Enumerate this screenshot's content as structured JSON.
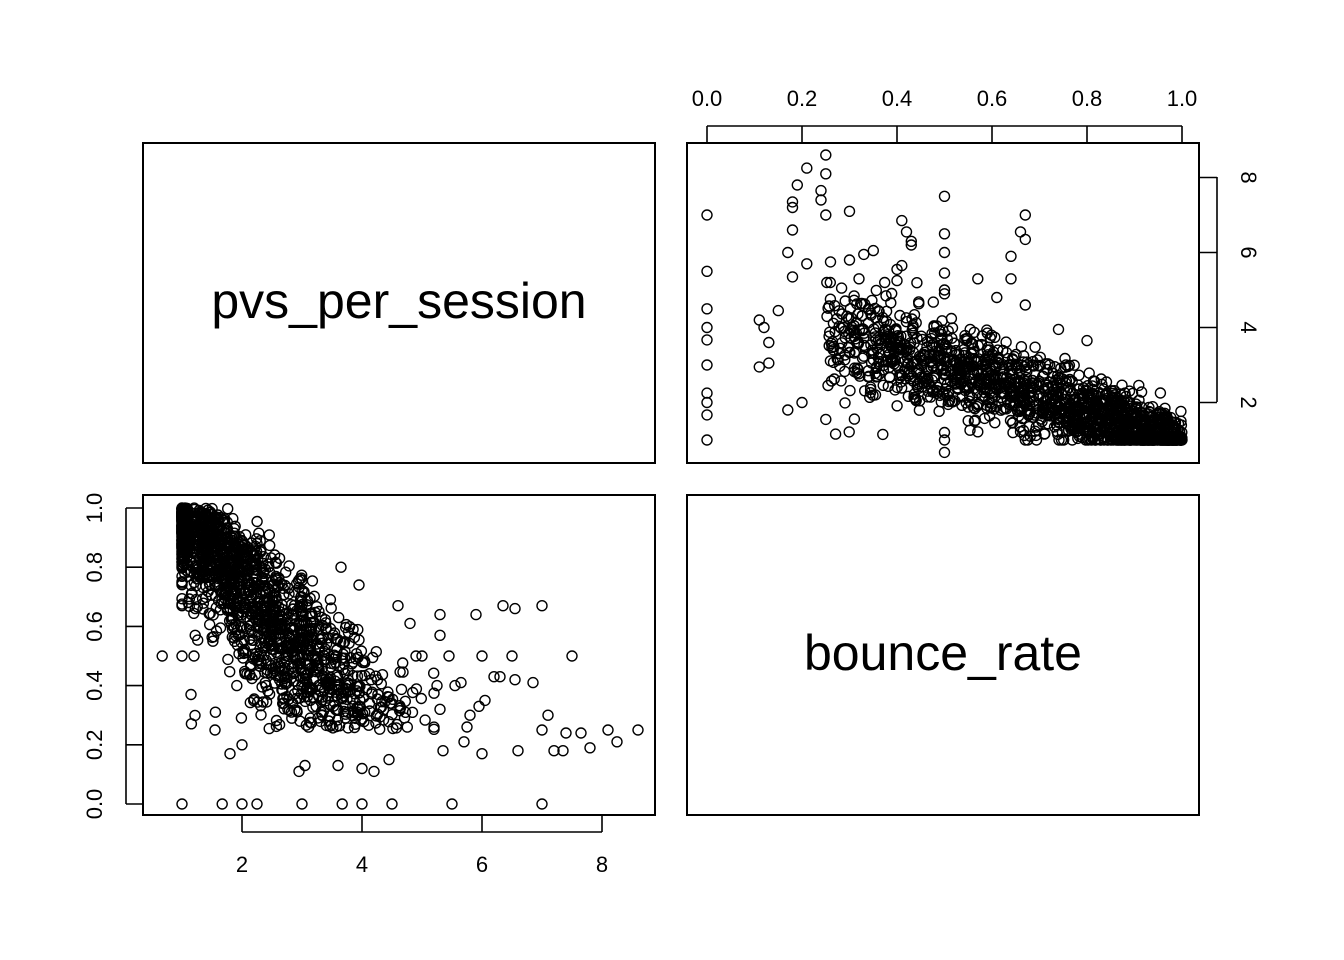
{
  "chart_data": {
    "type": "scatter",
    "variables": [
      "pvs_per_session",
      "bounce_rate"
    ],
    "x_ticks": {
      "bounce_rate": [
        "0.0",
        "0.2",
        "0.4",
        "0.6",
        "0.8",
        "1.0"
      ],
      "pvs_per_session": [
        "2",
        "4",
        "6",
        "8"
      ]
    },
    "y_ticks": {
      "pvs_per_session": [
        "2",
        "4",
        "6",
        "8"
      ],
      "bounce_rate": [
        "0.0",
        "0.2",
        "0.4",
        "0.6",
        "0.8",
        "1.0"
      ]
    },
    "ranges": {
      "pvs_per_session": [
        0.67,
        8.6
      ],
      "bounce_rate": [
        0.0,
        1.0
      ]
    },
    "grid": false,
    "outliers": [
      {
        "pvs": 7.0,
        "br": 0.0
      },
      {
        "pvs": 5.5,
        "br": 0.0
      },
      {
        "pvs": 4.5,
        "br": 0.0
      },
      {
        "pvs": 4.0,
        "br": 0.0
      },
      {
        "pvs": 3.67,
        "br": 0.0
      },
      {
        "pvs": 3.0,
        "br": 0.0
      },
      {
        "pvs": 2.25,
        "br": 0.0
      },
      {
        "pvs": 2.0,
        "br": 0.0
      },
      {
        "pvs": 1.67,
        "br": 0.0
      },
      {
        "pvs": 1.0,
        "br": 0.0
      },
      {
        "pvs": 0.67,
        "br": 0.5
      },
      {
        "pvs": 8.6,
        "br": 0.25
      },
      {
        "pvs": 8.25,
        "br": 0.21
      },
      {
        "pvs": 8.1,
        "br": 0.25
      },
      {
        "pvs": 7.8,
        "br": 0.19
      },
      {
        "pvs": 7.65,
        "br": 0.24
      },
      {
        "pvs": 7.4,
        "br": 0.24
      },
      {
        "pvs": 7.35,
        "br": 0.18
      },
      {
        "pvs": 7.1,
        "br": 0.3
      },
      {
        "pvs": 7.2,
        "br": 0.18
      },
      {
        "pvs": 7.5,
        "br": 0.5
      },
      {
        "pvs": 7.0,
        "br": 0.67
      },
      {
        "pvs": 7.0,
        "br": 0.25
      },
      {
        "pvs": 6.85,
        "br": 0.41
      },
      {
        "pvs": 6.6,
        "br": 0.18
      },
      {
        "pvs": 6.55,
        "br": 0.66
      },
      {
        "pvs": 6.5,
        "br": 0.5
      },
      {
        "pvs": 6.35,
        "br": 0.67
      },
      {
        "pvs": 6.55,
        "br": 0.42
      },
      {
        "pvs": 6.3,
        "br": 0.43
      },
      {
        "pvs": 6.2,
        "br": 0.43
      },
      {
        "pvs": 6.0,
        "br": 0.5
      },
      {
        "pvs": 6.05,
        "br": 0.35
      },
      {
        "pvs": 5.95,
        "br": 0.33
      },
      {
        "pvs": 6.0,
        "br": 0.17
      },
      {
        "pvs": 5.9,
        "br": 0.64
      },
      {
        "pvs": 5.8,
        "br": 0.3
      },
      {
        "pvs": 5.75,
        "br": 0.26
      },
      {
        "pvs": 5.7,
        "br": 0.21
      },
      {
        "pvs": 5.65,
        "br": 0.41
      },
      {
        "pvs": 5.55,
        "br": 0.4
      },
      {
        "pvs": 5.3,
        "br": 0.64
      },
      {
        "pvs": 5.3,
        "br": 0.57
      },
      {
        "pvs": 5.35,
        "br": 0.18
      },
      {
        "pvs": 5.25,
        "br": 0.4
      },
      {
        "pvs": 5.3,
        "br": 0.32
      },
      {
        "pvs": 5.45,
        "br": 0.5
      },
      {
        "pvs": 4.8,
        "br": 0.61
      },
      {
        "pvs": 4.6,
        "br": 0.67
      },
      {
        "pvs": 4.45,
        "br": 0.15
      },
      {
        "pvs": 4.2,
        "br": 0.11
      },
      {
        "pvs": 4.0,
        "br": 0.12
      },
      {
        "pvs": 3.95,
        "br": 0.74
      },
      {
        "pvs": 3.65,
        "br": 0.8
      },
      {
        "pvs": 3.05,
        "br": 0.13
      },
      {
        "pvs": 3.6,
        "br": 0.13
      },
      {
        "pvs": 2.95,
        "br": 0.11
      },
      {
        "pvs": 2.25,
        "br": 0.88
      },
      {
        "pvs": 1.15,
        "br": 0.37
      },
      {
        "pvs": 1.0,
        "br": 1.0
      },
      {
        "pvs": 1.0,
        "br": 0.67
      },
      {
        "pvs": 1.0,
        "br": 0.5
      },
      {
        "pvs": 1.2,
        "br": 0.5
      },
      {
        "pvs": 1.8,
        "br": 0.17
      },
      {
        "pvs": 2.0,
        "br": 0.2
      },
      {
        "pvs": 1.55,
        "br": 0.25
      },
      {
        "pvs": 5.0,
        "br": 0.5
      },
      {
        "pvs": 4.9,
        "br": 0.5
      }
    ]
  }
}
